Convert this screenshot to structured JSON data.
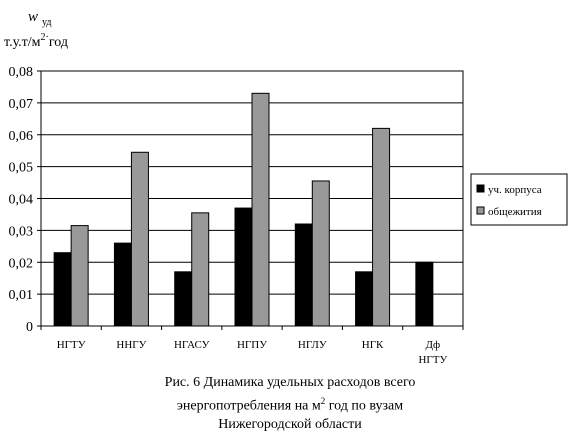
{
  "chart_data": {
    "type": "bar",
    "title": "",
    "ylabel_symbol": "w",
    "ylabel_subscript": "уд",
    "ylabel_unit_prefix": "т.у.т/м",
    "ylabel_unit_superscript": "2·",
    "ylabel_unit_suffix": "год",
    "xlabel": "",
    "categories": [
      "НГТУ",
      "ННГУ",
      "НГАСУ",
      "НГПУ",
      "НГЛУ",
      "НГК",
      "Дф НГТУ"
    ],
    "category_lines": [
      [
        "НГТУ"
      ],
      [
        "ННГУ"
      ],
      [
        "НГАСУ"
      ],
      [
        "НГПУ"
      ],
      [
        "НГЛУ"
      ],
      [
        "НГК"
      ],
      [
        "Дф",
        "НГТУ"
      ]
    ],
    "series": [
      {
        "name": "уч. корпуса",
        "color": "#000000",
        "values": [
          0.023,
          0.026,
          0.017,
          0.037,
          0.032,
          0.017,
          0.02
        ]
      },
      {
        "name": "общежития",
        "color": "#999999",
        "values": [
          0.0315,
          0.0545,
          0.0355,
          0.073,
          0.0455,
          0.062,
          null
        ]
      }
    ],
    "ylim": [
      0,
      0.08
    ],
    "yticks": [
      0,
      0.01,
      0.02,
      0.03,
      0.04,
      0.05,
      0.06,
      0.07,
      0.08
    ],
    "ytick_labels": [
      "0",
      "0,01",
      "0,02",
      "0,03",
      "0,04",
      "0,05",
      "0,06",
      "0,07",
      "0,08"
    ],
    "grid": true,
    "legend_position": "right"
  },
  "caption": {
    "line1": "Рис. 6 Динамика удельных расходов всего",
    "line2_prefix": "энергопотребления на м",
    "line2_sup": "2",
    "line2_suffix": " год по вузам",
    "line3": "Нижегородской области"
  }
}
